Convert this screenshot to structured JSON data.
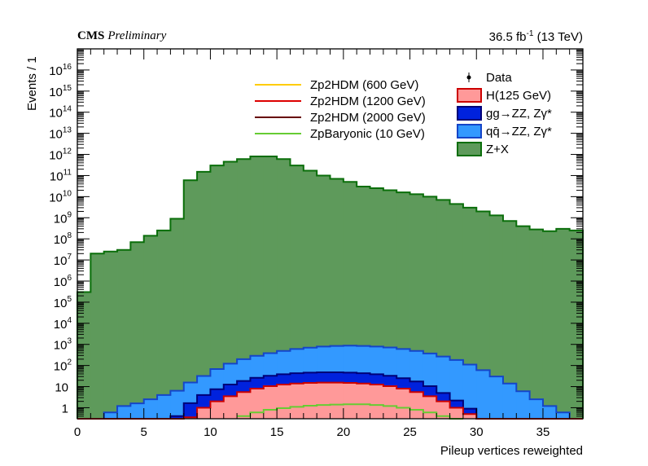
{
  "header": {
    "experiment": "CMS",
    "status": "Preliminary",
    "lumi_value": "36.5 fb",
    "lumi_exp": "-1",
    "energy": "(13 TeV)"
  },
  "chart_data": {
    "type": "histogram-stack",
    "xlabel": "Pileup vertices reweighted",
    "ylabel": "Events / 1",
    "xlim": [
      0,
      38
    ],
    "ylim": [
      0.3,
      1e+17
    ],
    "y_scale": "log",
    "x_ticks": [
      0,
      5,
      10,
      15,
      20,
      25,
      30,
      35
    ],
    "y_ticks": [
      {
        "value": 1,
        "base": "1",
        "exp": ""
      },
      {
        "value": 10,
        "base": "10",
        "exp": ""
      },
      {
        "value": 100,
        "base": "10",
        "exp": "2"
      },
      {
        "value": 1000,
        "base": "10",
        "exp": "3"
      },
      {
        "value": 10000.0,
        "base": "10",
        "exp": "4"
      },
      {
        "value": 100000.0,
        "base": "10",
        "exp": "5"
      },
      {
        "value": 1000000.0,
        "base": "10",
        "exp": "6"
      },
      {
        "value": 10000000.0,
        "base": "10",
        "exp": "7"
      },
      {
        "value": 100000000.0,
        "base": "10",
        "exp": "8"
      },
      {
        "value": 1000000000.0,
        "base": "10",
        "exp": "9"
      },
      {
        "value": 10000000000.0,
        "base": "10",
        "exp": "10"
      },
      {
        "value": 100000000000.0,
        "base": "10",
        "exp": "11"
      },
      {
        "value": 1000000000000.0,
        "base": "10",
        "exp": "12"
      },
      {
        "value": 10000000000000.0,
        "base": "10",
        "exp": "13"
      },
      {
        "value": 100000000000000.0,
        "base": "10",
        "exp": "14"
      },
      {
        "value": 1000000000000000.0,
        "base": "10",
        "exp": "15"
      },
      {
        "value": 1e+16,
        "base": "10",
        "exp": "16"
      }
    ],
    "bin_edges": [
      0,
      1,
      2,
      3,
      4,
      5,
      6,
      7,
      8,
      9,
      10,
      11,
      12,
      13,
      14,
      15,
      16,
      17,
      18,
      19,
      20,
      21,
      22,
      23,
      24,
      25,
      26,
      27,
      28,
      29,
      30,
      31,
      32,
      33,
      34,
      35,
      36,
      37,
      38
    ],
    "stack": [
      {
        "name": "Z+X",
        "fill": "#5e9a5b",
        "line": "#0a6e0a",
        "values": [
          300000.0,
          20000000.0,
          25000000.0,
          30000000.0,
          70000000.0,
          140000000.0,
          250000000.0,
          900000000.0,
          60000000000.0,
          150000000000.0,
          300000000000.0,
          450000000000.0,
          600000000000.0,
          800000000000.0,
          800000000000.0,
          600000000000.0,
          300000000000.0,
          170000000000.0,
          100000000000.0,
          70000000000.0,
          50000000000.0,
          30000000000.0,
          25000000000.0,
          20000000000.0,
          16000000000.0,
          13000000000.0,
          10000000000.0,
          7000000000.0,
          4500000000.0,
          3000000000.0,
          2000000000.0,
          1300000000.0,
          700000000.0,
          400000000.0,
          280000000.0,
          230000000.0,
          300000000.0,
          250000000.0
        ]
      },
      {
        "name": "qq̄→ZZ, Zγ*",
        "fill": "#3399ff",
        "line": "#1545c8",
        "values": [
          0,
          0,
          0.6,
          1.2,
          1.6,
          2.5,
          4,
          6,
          14,
          28,
          60,
          110,
          180,
          260,
          350,
          450,
          560,
          650,
          740,
          800,
          830,
          800,
          750,
          680,
          580,
          470,
          360,
          260,
          180,
          110,
          60,
          30,
          14,
          6,
          2.5,
          1.2,
          0.6,
          0
        ]
      },
      {
        "name": "gg→ZZ, Zγ*",
        "fill": "#0022dd",
        "line": "#000077",
        "values": [
          0,
          0,
          0,
          0,
          0,
          0,
          0,
          0.4,
          1.3,
          3,
          5.5,
          9,
          13,
          18,
          22,
          26,
          29,
          31,
          32,
          32,
          31,
          29,
          26,
          22,
          17,
          12,
          7,
          3,
          1.2,
          0.4,
          0,
          0,
          0,
          0,
          0,
          0,
          0,
          0
        ]
      },
      {
        "name": "H(125 GeV)",
        "fill": "#ff9999",
        "line": "#cc0000",
        "values": [
          0,
          0,
          0,
          0,
          0,
          0,
          0,
          0,
          0.35,
          1,
          2,
          3.5,
          5.5,
          8,
          10.5,
          12.5,
          14,
          15,
          15.5,
          15.5,
          15,
          14,
          12.5,
          10.5,
          8,
          5.5,
          3.5,
          2,
          1,
          0.5,
          0.3,
          0,
          0,
          0,
          0,
          0,
          0,
          0
        ]
      }
    ],
    "signals": [
      {
        "name": "Zp2HDM (600 GeV)",
        "color": "#ffcc00",
        "values": []
      },
      {
        "name": "Zp2HDM (1200 GeV)",
        "color": "#dd0000",
        "values": []
      },
      {
        "name": "Zp2HDM (2000 GeV)",
        "color": "#660000",
        "values": []
      },
      {
        "name": "ZpBaryonic (10 GeV)",
        "color": "#66cc33",
        "values": [
          0,
          0,
          0,
          0,
          0,
          0,
          0,
          0,
          0,
          0,
          0,
          0,
          0.4,
          0.6,
          0.8,
          0.95,
          1.1,
          1.25,
          1.35,
          1.4,
          1.45,
          1.45,
          1.35,
          1.2,
          1.0,
          0.8,
          0.6,
          0.4,
          0.3,
          0,
          0,
          0,
          0,
          0,
          0,
          0,
          0,
          0
        ]
      }
    ],
    "legend_left": [
      {
        "label": "Zp2HDM (600 GeV)",
        "color": "#ffcc00",
        "kind": "line"
      },
      {
        "label": "Zp2HDM (1200 GeV)",
        "color": "#dd0000",
        "kind": "line"
      },
      {
        "label": "Zp2HDM (2000 GeV)",
        "color": "#660000",
        "kind": "line"
      },
      {
        "label": "ZpBaryonic (10 GeV)",
        "color": "#66cc33",
        "kind": "line"
      }
    ],
    "legend_right": [
      {
        "label": "Data",
        "kind": "marker",
        "color": "#000000"
      },
      {
        "label": "H(125 GeV)",
        "kind": "box",
        "fill": "#ff9999",
        "line": "#cc0000"
      },
      {
        "label": "gg→ZZ, Zγ*",
        "kind": "box",
        "fill": "#0022dd",
        "line": "#000077"
      },
      {
        "label": "qq̄→ZZ, Zγ*",
        "kind": "box",
        "fill": "#3399ff",
        "line": "#1545c8"
      },
      {
        "label": "Z+X",
        "kind": "box",
        "fill": "#5e9a5b",
        "line": "#0a6e0a"
      }
    ]
  }
}
